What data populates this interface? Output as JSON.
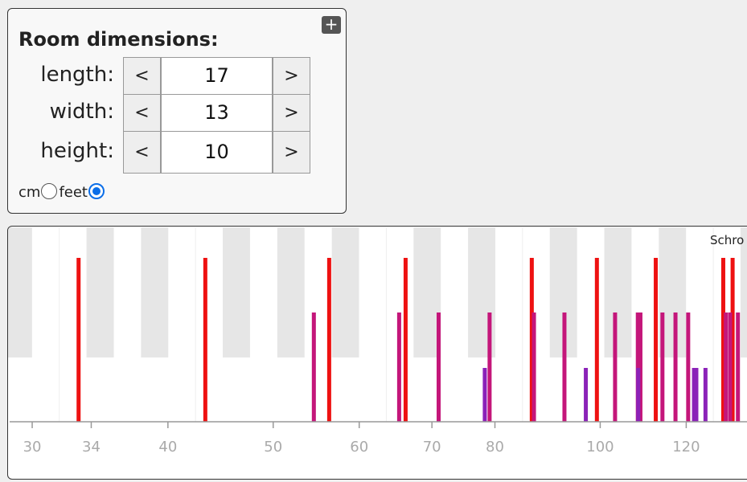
{
  "panel": {
    "title": "Room dimensions:",
    "toggle": "+",
    "rows": [
      {
        "label": "length:",
        "decrease": "<",
        "value": 17,
        "increase": ">"
      },
      {
        "label": "width:",
        "decrease": "<",
        "value": 13,
        "increase": ">"
      },
      {
        "label": "height:",
        "decrease": "<",
        "value": 10,
        "increase": ">"
      }
    ],
    "units": [
      {
        "label": "cm",
        "selected": false
      },
      {
        "label": "feet",
        "selected": true
      }
    ]
  },
  "chart_data": {
    "type": "bar",
    "xscale": "log",
    "xlim": [
      28.6,
      136.5
    ],
    "xticks": [
      30,
      34,
      40,
      50,
      60,
      70,
      80,
      100,
      120
    ],
    "annotation": "Schro",
    "series": [
      {
        "color": "#ee1111",
        "values": [
          33.1,
          43.3,
          56.3,
          66.2,
          86.5,
          99.3,
          112.5,
          129.8,
          132.4
        ]
      },
      {
        "color": "#c4167a",
        "values": [
          54.5,
          65.3,
          71.0,
          79.1,
          86.9,
          92.7,
          103.2,
          108.3,
          108.9,
          114.1,
          117.3,
          120.5,
          130.5,
          131.7,
          133.9
        ]
      },
      {
        "color": "#8b22b8",
        "values": [
          78.3,
          97.0,
          108.4,
          122.0,
          122.6,
          125.0
        ]
      }
    ]
  }
}
